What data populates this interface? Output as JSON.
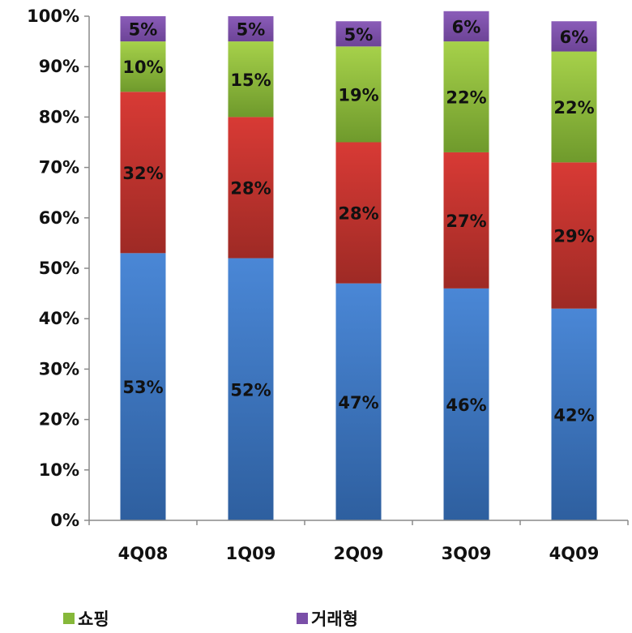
{
  "chart_data": {
    "type": "bar",
    "stacked": true,
    "categories": [
      "4Q08",
      "1Q09",
      "2Q09",
      "3Q09",
      "4Q09"
    ],
    "ylim": [
      0,
      100
    ],
    "yticks": [
      "0%",
      "10%",
      "20%",
      "30%",
      "40%",
      "50%",
      "60%",
      "70%",
      "80%",
      "90%",
      "100%"
    ],
    "series": [
      {
        "values": [
          53,
          52,
          47,
          46,
          42
        ],
        "labels": [
          "53%",
          "52%",
          "47%",
          "46%",
          "42%"
        ],
        "color_top": "#4a87d6",
        "color_bottom": "#2e5f9f"
      },
      {
        "values": [
          32,
          28,
          28,
          27,
          29
        ],
        "labels": [
          "32%",
          "28%",
          "28%",
          "27%",
          "29%"
        ],
        "color_top": "#d83a35",
        "color_bottom": "#9e2a25"
      },
      {
        "name": "쇼핑",
        "values": [
          10,
          15,
          19,
          22,
          22
        ],
        "labels": [
          "10%",
          "15%",
          "19%",
          "22%",
          "22%"
        ],
        "color_top": "#a6d14a",
        "color_bottom": "#6f9a2c"
      },
      {
        "name": "거래형",
        "values": [
          5,
          5,
          5,
          6,
          6
        ],
        "labels": [
          "5%",
          "5%",
          "5%",
          "6%",
          "6%"
        ],
        "color_top": "#8a5cb8",
        "color_bottom": "#6d4497"
      }
    ],
    "grid": false
  },
  "legend": {
    "shopping_label": "쇼핑",
    "transaction_label": "거래형",
    "shopping_color": "#86b83a",
    "transaction_color": "#7a4fa8"
  }
}
